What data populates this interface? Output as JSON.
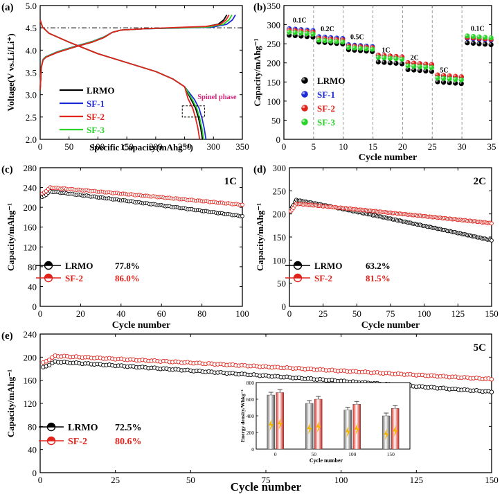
{
  "colors": {
    "lrmo": "#000000",
    "sf1": "#1d2bd6",
    "sf2": "#e0231c",
    "sf3": "#2bd32b",
    "spinel": "#d6247a",
    "bar_gray": "#9b9b9b",
    "bar_red": "#f04a3f",
    "bolt": "#f6b400"
  },
  "chart_data": [
    {
      "id": "a",
      "panel_label": "(a)",
      "type": "line",
      "xlabel": "Specific Capacity(mAhg⁻¹)",
      "ylabel": "Voltage(V vs.Li/Li⁺)",
      "xlim": [
        0,
        350
      ],
      "ylim": [
        2.0,
        5.0
      ],
      "xticks": [
        0,
        50,
        100,
        150,
        200,
        250,
        300,
        350
      ],
      "yticks": [
        2.0,
        2.5,
        3.0,
        3.5,
        4.0,
        4.5,
        5.0
      ],
      "reference_line_y": 4.5,
      "annotation": "Spinel phase",
      "spinel_box": {
        "x": [
          246,
          268
        ],
        "y": [
          2.5,
          2.75
        ]
      },
      "legend": [
        "LRMO",
        "SF-1",
        "SF-2",
        "SF-3"
      ],
      "series": [
        {
          "name": "LRMO",
          "charge_end": 323,
          "discharge_end": 281
        },
        {
          "name": "SF-1",
          "charge_end": 338,
          "discharge_end": 287
        },
        {
          "name": "SF-2",
          "charge_end": 327,
          "discharge_end": 276
        },
        {
          "name": "SF-3",
          "charge_end": 332,
          "discharge_end": 283
        }
      ]
    },
    {
      "id": "b",
      "panel_label": "(b)",
      "type": "scatter",
      "xlabel": "Cycle number",
      "ylabel": "Capacity/mAhg⁻¹",
      "xlim": [
        0,
        35
      ],
      "ylim": [
        0,
        350
      ],
      "xticks": [
        0,
        5,
        10,
        15,
        20,
        25,
        30,
        35
      ],
      "yticks": [
        0,
        50,
        100,
        150,
        200,
        250,
        300,
        350
      ],
      "rate_labels": [
        "0.1C",
        "0.2C",
        "0.5C",
        "1C",
        "2C",
        "5C",
        "0.1C"
      ],
      "rate_boundaries": [
        5,
        10,
        15,
        20,
        25,
        30
      ],
      "legend": [
        "LRMO",
        "SF-1",
        "SF-2",
        "SF-3"
      ],
      "series": [
        {
          "name": "LRMO",
          "segment_values": [
            270,
            252,
            232,
            200,
            180,
            148,
            250
          ]
        },
        {
          "name": "SF-1",
          "segment_values": [
            287,
            266,
            245,
            218,
            198,
            165,
            262
          ]
        },
        {
          "name": "SF-2",
          "segment_values": [
            283,
            262,
            242,
            218,
            198,
            166,
            264
          ]
        },
        {
          "name": "SF-3",
          "segment_values": [
            278,
            257,
            238,
            212,
            190,
            158,
            268
          ]
        }
      ]
    },
    {
      "id": "c",
      "panel_label": "(c)",
      "type": "scatter",
      "rate": "1C",
      "xlabel": "Cycle number",
      "ylabel": "Capacity/mAhg⁻¹",
      "xlim": [
        0,
        100
      ],
      "ylim": [
        0,
        280
      ],
      "xticks": [
        0,
        20,
        40,
        60,
        80,
        100
      ],
      "yticks": [
        0,
        40,
        80,
        120,
        160,
        200,
        240,
        280
      ],
      "series": [
        {
          "name": "LRMO",
          "retention": "77.8%",
          "start": 220,
          "peak": 232,
          "end": 182
        },
        {
          "name": "SF-2",
          "retention": "86.0%",
          "start": 227,
          "peak": 240,
          "end": 205
        }
      ]
    },
    {
      "id": "d",
      "panel_label": "(d)",
      "type": "scatter",
      "rate": "2C",
      "xlabel": "Cycle number",
      "ylabel": "Capacity/mAhg⁻¹",
      "xlim": [
        0,
        150
      ],
      "ylim": [
        0,
        300
      ],
      "xticks": [
        0,
        25,
        50,
        75,
        100,
        125,
        150
      ],
      "yticks": [
        0,
        50,
        100,
        150,
        200,
        250,
        300
      ],
      "series": [
        {
          "name": "LRMO",
          "retention": "63.2%",
          "start": 210,
          "peak": 230,
          "end": 143
        },
        {
          "name": "SF-2",
          "retention": "81.5%",
          "start": 205,
          "peak": 222,
          "end": 180
        }
      ]
    },
    {
      "id": "e",
      "panel_label": "(e)",
      "type": "scatter",
      "rate": "5C",
      "xlabel": "Cycle number",
      "ylabel": "Capacity/mAhg⁻¹",
      "xlim": [
        0,
        150
      ],
      "ylim": [
        0,
        240
      ],
      "xticks": [
        0,
        25,
        50,
        75,
        100,
        125,
        150
      ],
      "yticks": [
        0,
        40,
        80,
        120,
        160,
        200,
        240
      ],
      "series": [
        {
          "name": "LRMO",
          "retention": "72.5%",
          "start": 182,
          "peak": 192,
          "end": 140
        },
        {
          "name": "SF-2",
          "retention": "80.6%",
          "start": 190,
          "peak": 202,
          "end": 162
        }
      ],
      "inset": {
        "type": "bar",
        "xlabel": "Cycle number",
        "ylabel": "Energy density/Whkg⁻¹",
        "ylim": [
          0,
          800
        ],
        "yticks": [
          0,
          200,
          400,
          600,
          800
        ],
        "categories": [
          "0",
          "50",
          "100",
          "150"
        ],
        "series": [
          {
            "name": "LRMO",
            "values": [
              650,
              550,
              470,
              400
            ]
          },
          {
            "name": "SF-2",
            "values": [
              680,
              600,
              540,
              490
            ]
          }
        ]
      }
    }
  ]
}
